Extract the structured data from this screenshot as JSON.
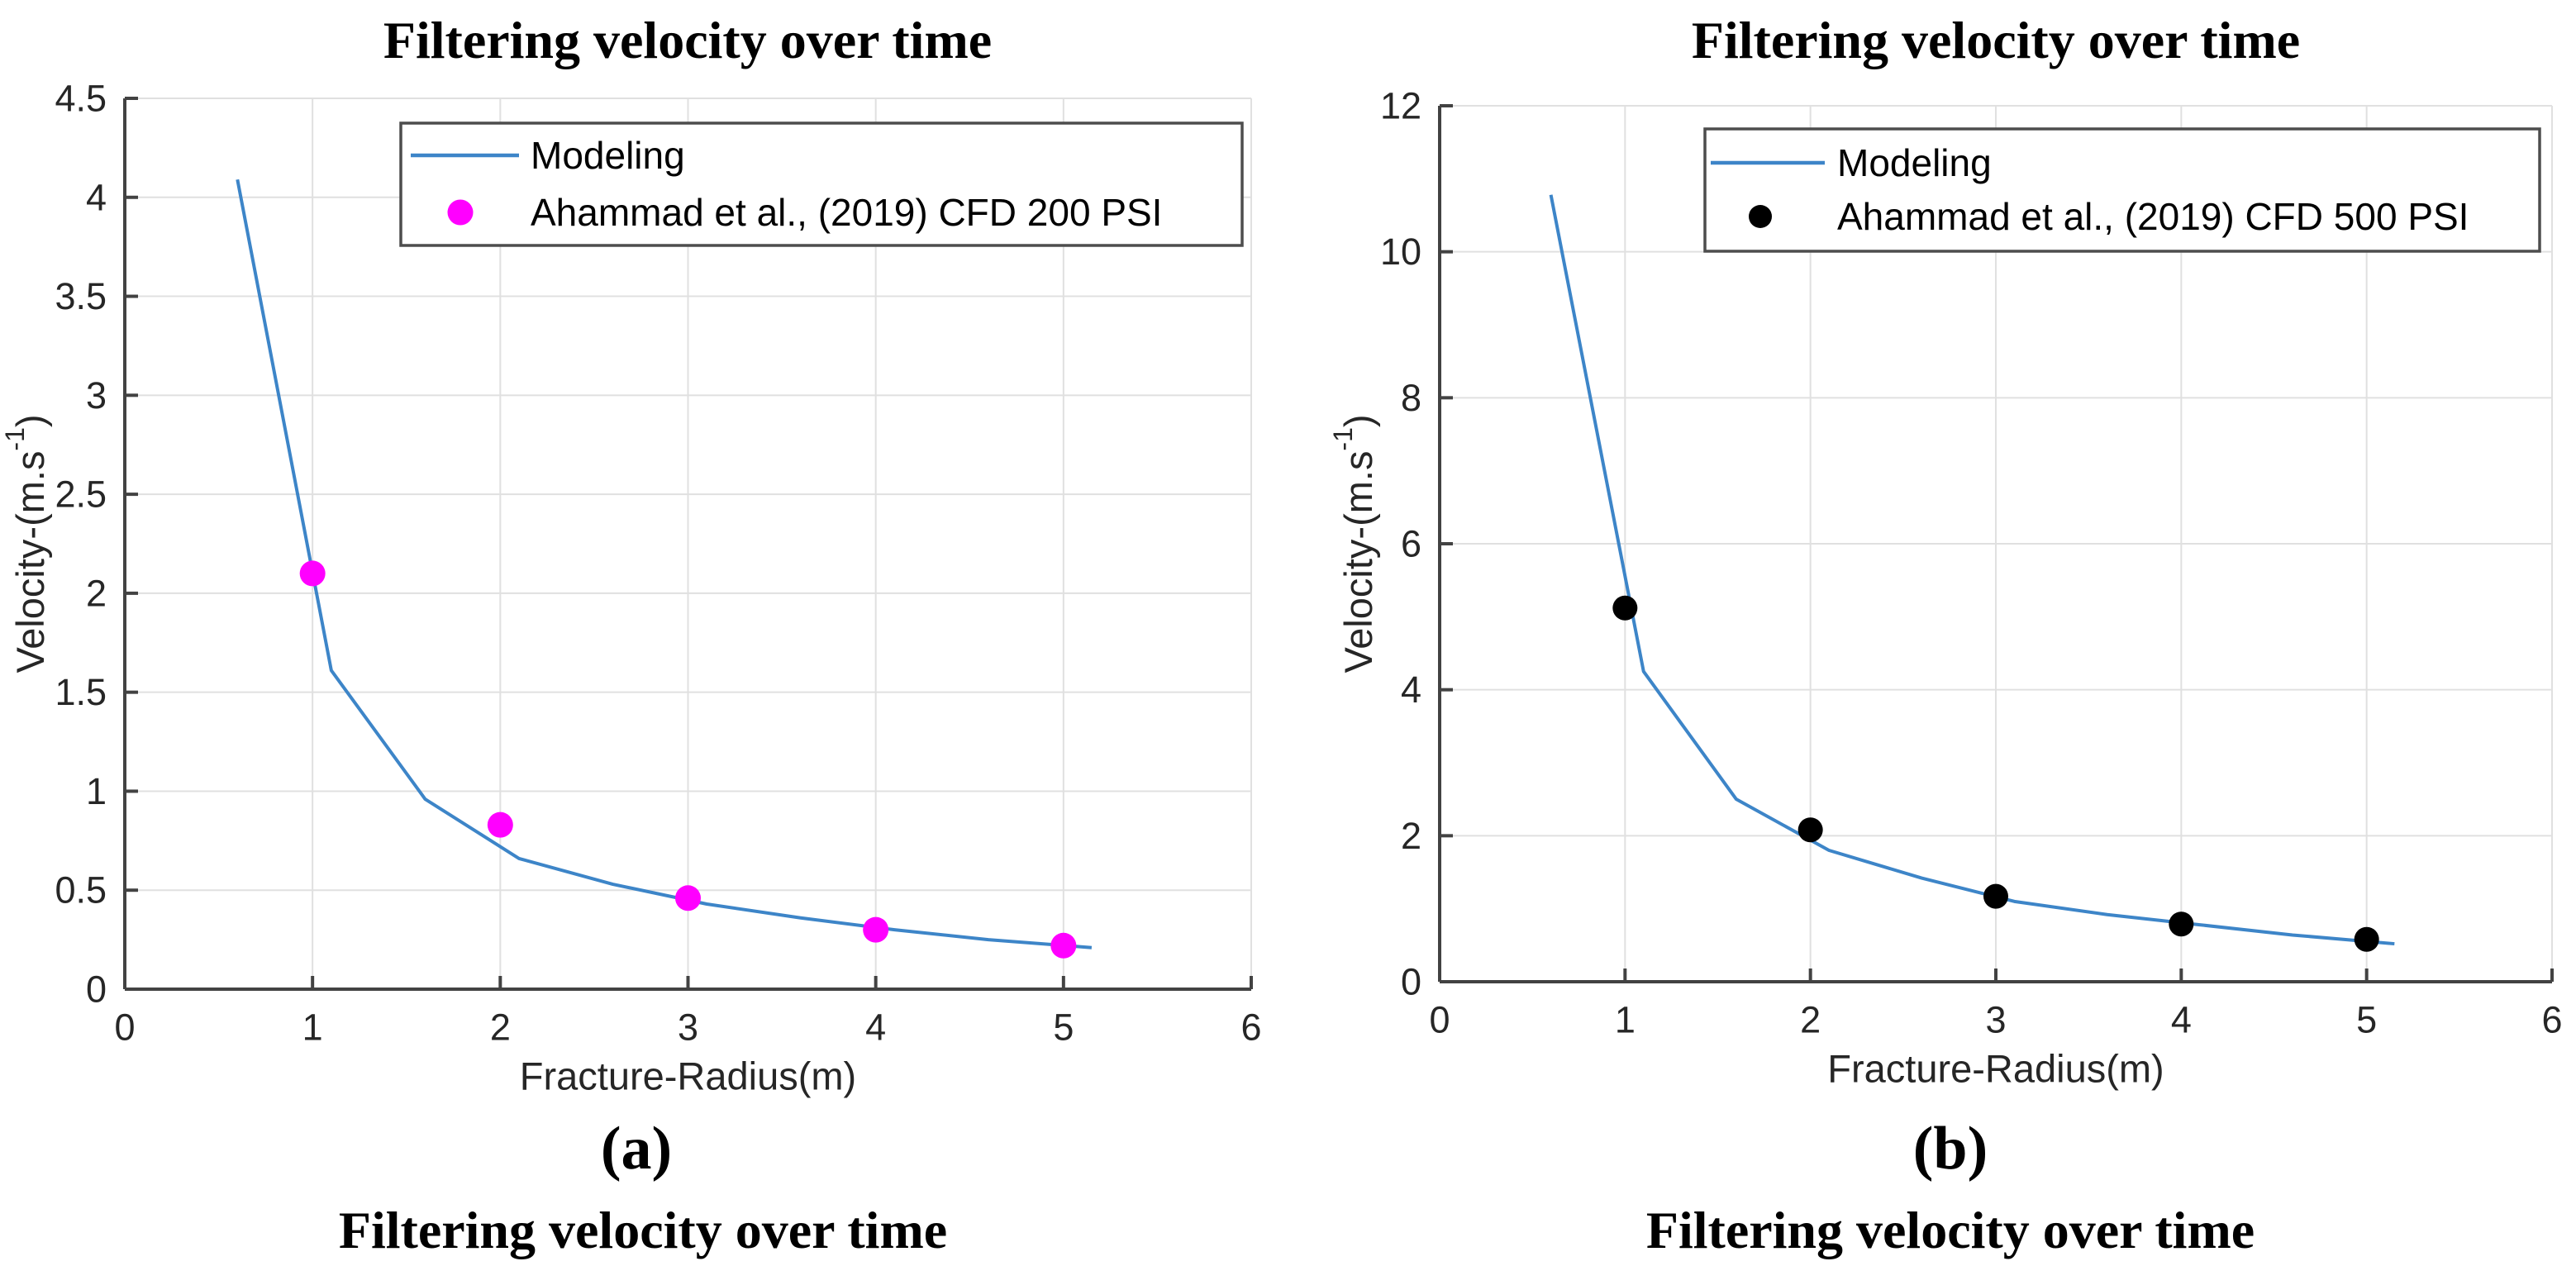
{
  "figure": {
    "background": "#ffffff"
  },
  "colors": {
    "modeling_line": "#3D85C8",
    "cfd_200_marker": "#FF00FF",
    "cfd_500_marker": "#000000",
    "grid": "#E0E0E0",
    "axis": "#424242",
    "tick_text": "#262626",
    "legend_border": "#4D4D4D",
    "legend_background": "#FFFFFF",
    "title_text": "#000000"
  },
  "chart_data": [
    {
      "type": "line",
      "panel_label": "a",
      "title": "Filtering velocity over time",
      "xlabel": "Fracture-Radius(m)",
      "ylabel_main": "Velocity-(m.s",
      "ylabel_sup": "-1",
      "ylabel_close": ")",
      "xlim": [
        0,
        6
      ],
      "ylim": [
        0,
        4.5
      ],
      "xticks": [
        0,
        1,
        2,
        3,
        4,
        5,
        6
      ],
      "yticks": [
        0,
        0.5,
        1,
        1.5,
        2,
        2.5,
        3,
        3.5,
        4,
        4.5
      ],
      "grid": true,
      "legend_position": "upper center-right",
      "series": [
        {
          "name": "Modeling",
          "kind": "line",
          "color": "#3D85C8",
          "points": [
            [
              0.6,
              4.09
            ],
            [
              1.1,
              1.61
            ],
            [
              1.6,
              0.96
            ],
            [
              2.1,
              0.66
            ],
            [
              2.6,
              0.53
            ],
            [
              3.1,
              0.43
            ],
            [
              3.6,
              0.36
            ],
            [
              4.1,
              0.3
            ],
            [
              4.6,
              0.25
            ],
            [
              5.15,
              0.21
            ]
          ]
        },
        {
          "name": "Ahammad et al., (2019) CFD 200 PSI",
          "kind": "scatter",
          "color": "#FF00FF",
          "points": [
            [
              1,
              2.1
            ],
            [
              2,
              0.83
            ],
            [
              3,
              0.46
            ],
            [
              4,
              0.3
            ],
            [
              5,
              0.22
            ]
          ]
        }
      ],
      "caption": "(a)",
      "bottom_text": "Filtering velocity over time"
    },
    {
      "type": "line",
      "panel_label": "b",
      "title": "Filtering velocity over time",
      "xlabel": "Fracture-Radius(m)",
      "ylabel_main": "Velocity-(m.s",
      "ylabel_sup": "-1",
      "ylabel_close": ")",
      "xlim": [
        0,
        6
      ],
      "ylim": [
        0,
        12
      ],
      "xticks": [
        0,
        1,
        2,
        3,
        4,
        5,
        6
      ],
      "yticks": [
        0,
        2,
        4,
        6,
        8,
        10,
        12
      ],
      "grid": true,
      "legend_position": "upper center-right",
      "series": [
        {
          "name": "Modeling",
          "kind": "line",
          "color": "#3D85C8",
          "points": [
            [
              0.6,
              10.78
            ],
            [
              1.1,
              4.25
            ],
            [
              1.6,
              2.5
            ],
            [
              2.1,
              1.8
            ],
            [
              2.6,
              1.42
            ],
            [
              3.1,
              1.1
            ],
            [
              3.6,
              0.92
            ],
            [
              4.1,
              0.78
            ],
            [
              4.6,
              0.64
            ],
            [
              5.15,
              0.52
            ]
          ]
        },
        {
          "name": "Ahammad et al., (2019) CFD 500 PSI",
          "kind": "scatter",
          "color": "#000000",
          "points": [
            [
              1,
              5.12
            ],
            [
              2,
              2.08
            ],
            [
              3,
              1.17
            ],
            [
              4,
              0.79
            ],
            [
              5,
              0.58
            ]
          ]
        }
      ],
      "caption": "(b)",
      "bottom_text": "Filtering velocity over time"
    }
  ]
}
